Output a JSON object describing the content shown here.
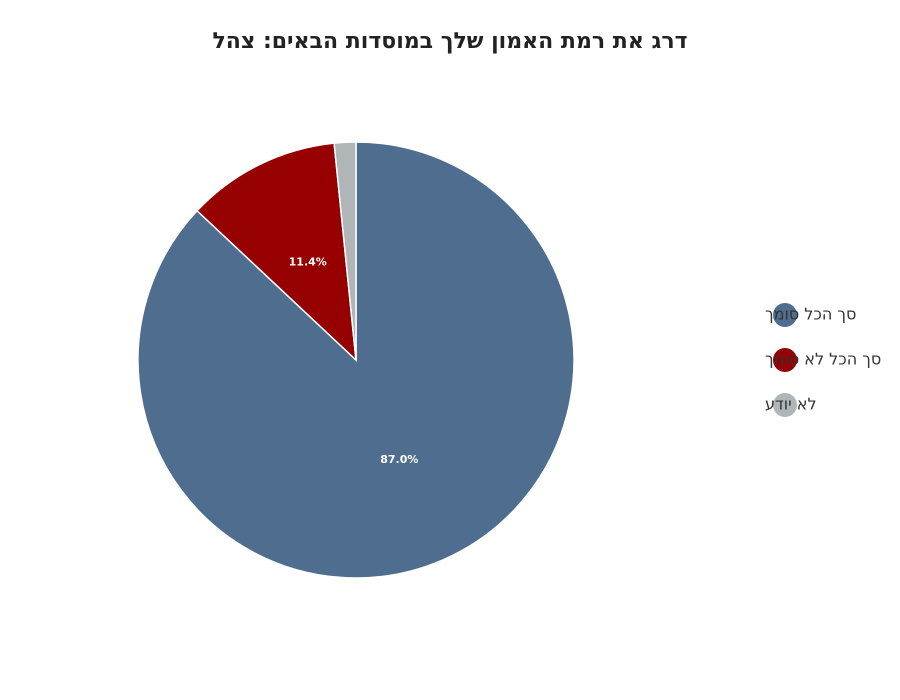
{
  "chart_data": {
    "type": "pie",
    "title": "דרג את רמת האמון שלך במוסדות הבאים: צהל",
    "categories": [
      "סך הכל סומך",
      "סך הכל לא סומך",
      "לא יודע"
    ],
    "values": [
      87.0,
      11.4,
      1.6
    ],
    "value_labels": [
      "87.0%",
      "11.4%",
      null
    ],
    "colors": [
      "#4f6d8f",
      "#960000",
      "#b0b5b7"
    ],
    "legend": "right"
  }
}
